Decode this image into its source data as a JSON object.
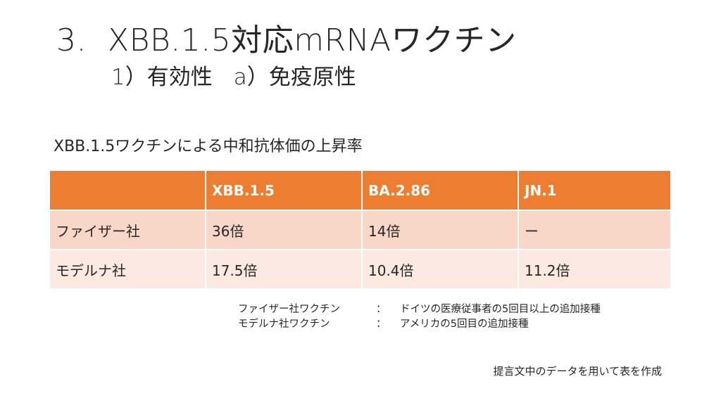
{
  "header": {
    "number": "3.",
    "title": "XBB.1.5対応mRNAワクチン",
    "subtitle_part1": "1）有効性",
    "subtitle_part2": "a）免疫原性"
  },
  "table": {
    "caption": "XBB.1.5ワクチンによる中和抗体価の上昇率",
    "columns": [
      "",
      "XBB.1.5",
      "BA.2.86",
      "JN.1"
    ],
    "rows": [
      {
        "company": "ファイザー社",
        "values": [
          "36倍",
          "14倍",
          "ー"
        ]
      },
      {
        "company": "モデルナ社",
        "values": [
          "17.5倍",
          "10.4倍",
          "11.2倍"
        ]
      }
    ]
  },
  "footnotes": [
    {
      "label": "ファイザー社ワクチン",
      "colon": "：",
      "text": "ドイツの医療従事者の5回目以上の追加接種"
    },
    {
      "label": "モデルナ社ワクチン",
      "colon": "：",
      "text": "アメリカの5回目の追加接種"
    }
  ],
  "source_note": "提言文中のデータを用いて表を作成",
  "colors": {
    "header_bg": "#ed7d31",
    "row_odd_bg": "#f9d7c8",
    "row_even_bg": "#fbe9e2"
  }
}
